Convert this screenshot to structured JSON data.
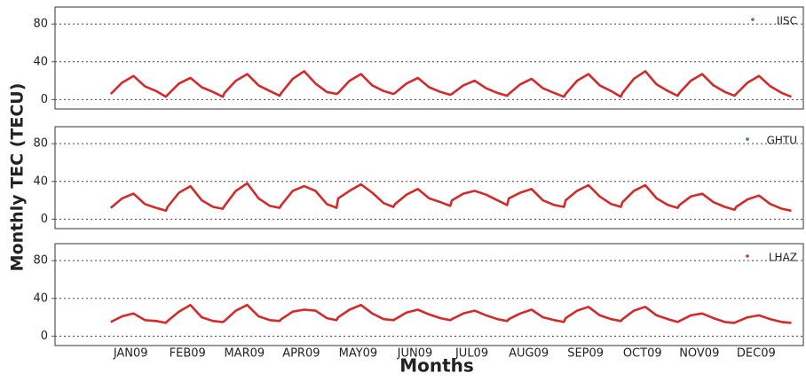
{
  "ylabel": "Monthly TEC (TECU)",
  "xlabel": "Months",
  "chart_data": [
    {
      "type": "line",
      "xlim": [
        -0.33,
        12.83
      ],
      "ylim": [
        -10,
        98
      ],
      "yticks": [
        0,
        40,
        80
      ],
      "grid": true,
      "x": [
        0.65,
        0.85,
        1.05,
        1.25,
        1.45,
        1.62,
        1.65,
        1.85,
        2.05,
        2.25,
        2.45,
        2.62,
        2.65,
        2.85,
        3.05,
        3.25,
        3.45,
        3.62,
        3.65,
        3.85,
        4.05,
        4.25,
        4.45,
        4.62,
        4.65,
        4.85,
        5.05,
        5.25,
        5.45,
        5.62,
        5.65,
        5.85,
        6.05,
        6.25,
        6.45,
        6.62,
        6.65,
        6.85,
        7.05,
        7.25,
        7.45,
        7.62,
        7.65,
        7.85,
        8.05,
        8.25,
        8.45,
        8.62,
        8.65,
        8.85,
        9.05,
        9.25,
        9.45,
        9.62,
        9.65,
        9.85,
        10.05,
        10.25,
        10.45,
        10.62,
        10.65,
        10.85,
        11.05,
        11.25,
        11.45,
        11.62,
        11.65,
        11.85,
        12.05,
        12.25,
        12.45,
        12.62
      ],
      "series": [
        {
          "name": "IISC",
          "color": "#d42a2a",
          "marker_color": "#3a8a3a",
          "values": [
            6,
            18,
            25,
            14,
            9,
            3,
            5,
            17,
            23,
            13,
            8,
            3,
            7,
            20,
            27,
            15,
            9,
            4,
            7,
            22,
            30,
            17,
            8,
            6,
            7,
            20,
            27,
            15,
            9,
            6,
            7,
            17,
            23,
            13,
            8,
            5,
            6,
            15,
            20,
            12,
            7,
            4,
            6,
            16,
            22,
            12,
            7,
            3,
            6,
            20,
            27,
            15,
            9,
            3,
            7,
            22,
            30,
            16,
            9,
            4,
            7,
            20,
            27,
            15,
            8,
            4,
            6,
            18,
            25,
            14,
            7,
            3
          ]
        }
      ]
    },
    {
      "type": "line",
      "xlim": [
        -0.33,
        12.83
      ],
      "ylim": [
        -10,
        98
      ],
      "yticks": [
        0,
        40,
        80
      ],
      "grid": true,
      "x": [
        0.65,
        0.85,
        1.05,
        1.25,
        1.45,
        1.62,
        1.65,
        1.85,
        2.05,
        2.25,
        2.45,
        2.62,
        2.65,
        2.85,
        3.05,
        3.25,
        3.45,
        3.62,
        3.65,
        3.85,
        4.05,
        4.25,
        4.45,
        4.62,
        4.65,
        4.85,
        5.05,
        5.25,
        5.45,
        5.62,
        5.65,
        5.85,
        6.05,
        6.25,
        6.45,
        6.62,
        6.65,
        6.85,
        7.05,
        7.25,
        7.45,
        7.62,
        7.65,
        7.85,
        8.05,
        8.25,
        8.45,
        8.62,
        8.65,
        8.85,
        9.05,
        9.25,
        9.45,
        9.62,
        9.65,
        9.85,
        10.05,
        10.25,
        10.45,
        10.62,
        10.65,
        10.85,
        11.05,
        11.25,
        11.45,
        11.62,
        11.65,
        11.85,
        12.05,
        12.25,
        12.45,
        12.62
      ],
      "series": [
        {
          "name": "GHTU",
          "color": "#d42a2a",
          "marker_color": "#3a8a3a",
          "values": [
            12,
            22,
            27,
            16,
            12,
            9,
            13,
            28,
            35,
            20,
            13,
            11,
            14,
            30,
            38,
            22,
            14,
            12,
            15,
            30,
            35,
            30,
            16,
            12,
            22,
            30,
            37,
            28,
            17,
            13,
            16,
            26,
            32,
            22,
            18,
            14,
            20,
            27,
            30,
            26,
            20,
            15,
            22,
            28,
            32,
            20,
            15,
            13,
            20,
            30,
            36,
            24,
            16,
            13,
            18,
            30,
            36,
            22,
            15,
            12,
            15,
            24,
            27,
            18,
            13,
            10,
            13,
            21,
            25,
            16,
            11,
            9
          ]
        }
      ]
    },
    {
      "type": "line",
      "xlim": [
        -0.33,
        12.83
      ],
      "ylim": [
        -10,
        98
      ],
      "yticks": [
        0,
        40,
        80
      ],
      "grid": true,
      "xticks": [
        {
          "value": 1,
          "label": "JAN09"
        },
        {
          "value": 2,
          "label": "FEB09"
        },
        {
          "value": 3,
          "label": "MAR09"
        },
        {
          "value": 4,
          "label": "APR09"
        },
        {
          "value": 5,
          "label": "MAY09"
        },
        {
          "value": 6,
          "label": "JUN09"
        },
        {
          "value": 7,
          "label": "JUL09"
        },
        {
          "value": 8,
          "label": "AUG09"
        },
        {
          "value": 9,
          "label": "SEP09"
        },
        {
          "value": 10,
          "label": "OCT09"
        },
        {
          "value": 11,
          "label": "NOV09"
        },
        {
          "value": 12,
          "label": "DEC09"
        }
      ],
      "x": [
        0.65,
        0.85,
        1.05,
        1.25,
        1.45,
        1.62,
        1.65,
        1.85,
        2.05,
        2.25,
        2.45,
        2.62,
        2.65,
        2.85,
        3.05,
        3.25,
        3.45,
        3.62,
        3.65,
        3.85,
        4.05,
        4.25,
        4.45,
        4.62,
        4.65,
        4.85,
        5.05,
        5.25,
        5.45,
        5.62,
        5.65,
        5.85,
        6.05,
        6.25,
        6.45,
        6.62,
        6.65,
        6.85,
        7.05,
        7.25,
        7.45,
        7.62,
        7.65,
        7.85,
        8.05,
        8.25,
        8.45,
        8.62,
        8.65,
        8.85,
        9.05,
        9.25,
        9.45,
        9.62,
        9.65,
        9.85,
        10.05,
        10.25,
        10.45,
        10.62,
        10.65,
        10.85,
        11.05,
        11.25,
        11.45,
        11.62,
        11.65,
        11.85,
        12.05,
        12.25,
        12.45,
        12.62
      ],
      "series": [
        {
          "name": "LHAZ",
          "color": "#d42a2a",
          "marker_color": "#e03030",
          "values": [
            15,
            21,
            24,
            17,
            16,
            14,
            16,
            26,
            33,
            20,
            16,
            15,
            16,
            27,
            33,
            21,
            17,
            16,
            18,
            26,
            28,
            27,
            19,
            17,
            20,
            28,
            33,
            24,
            18,
            17,
            18,
            25,
            28,
            23,
            19,
            17,
            18,
            24,
            27,
            22,
            18,
            16,
            18,
            24,
            28,
            20,
            17,
            15,
            19,
            27,
            31,
            22,
            18,
            16,
            18,
            27,
            31,
            22,
            18,
            15,
            16,
            22,
            24,
            19,
            15,
            14,
            15,
            20,
            22,
            18,
            15,
            14
          ]
        }
      ]
    }
  ]
}
